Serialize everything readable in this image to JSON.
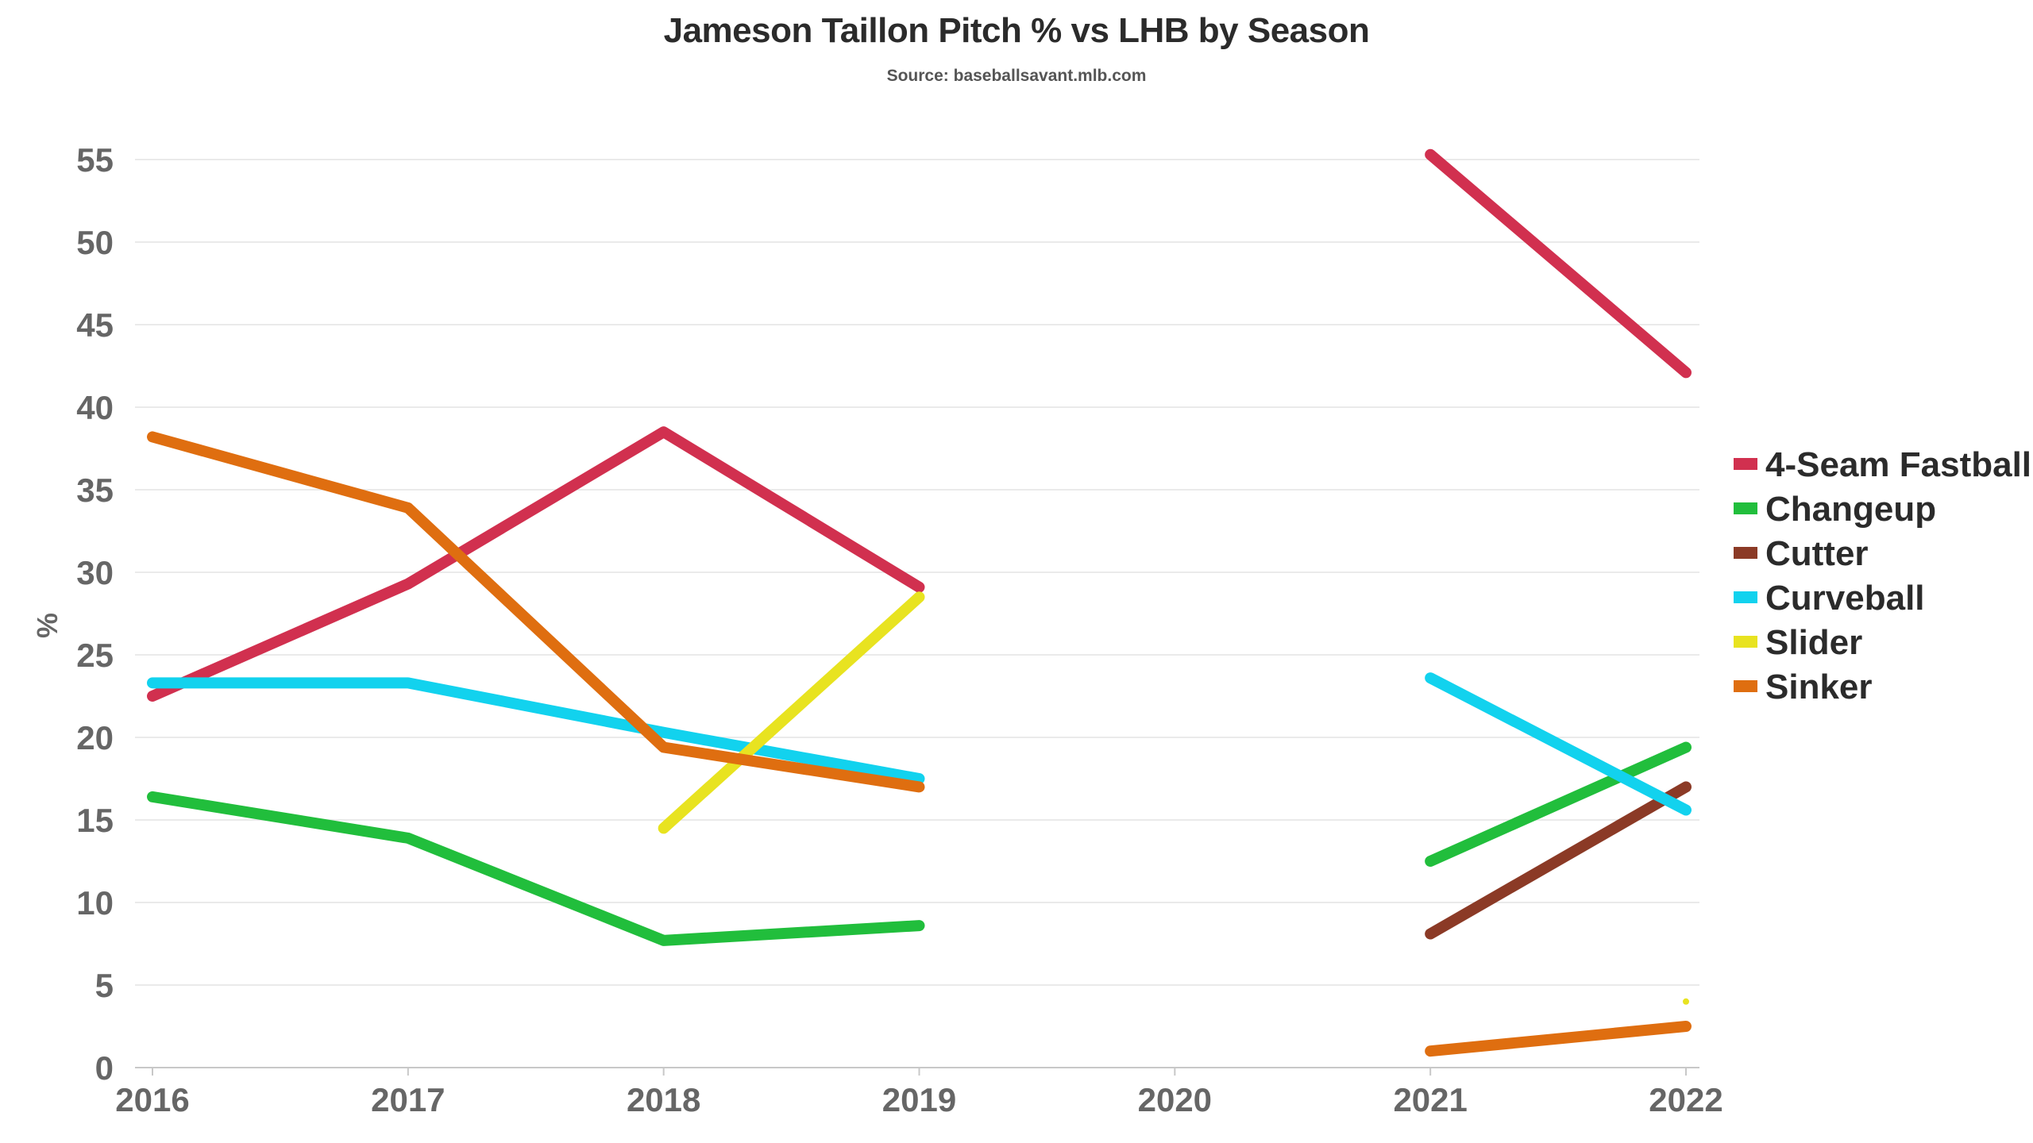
{
  "chart_data": {
    "type": "line",
    "title": "Jameson Taillon Pitch % vs LHB by Season",
    "subtitle": "Source: baseballsavant.mlb.com",
    "xlabel": "",
    "ylabel": "%",
    "x": [
      "2016",
      "2017",
      "2018",
      "2019",
      "2020",
      "2021",
      "2022"
    ],
    "ylim": [
      0,
      55
    ],
    "yticks": [
      0,
      5,
      10,
      15,
      20,
      25,
      30,
      35,
      40,
      45,
      50,
      55
    ],
    "grid": true,
    "legend_position": "right",
    "series": [
      {
        "name": "4-Seam Fastball",
        "color": "#d1304f",
        "values": [
          22.5,
          29.3,
          38.5,
          29.1,
          null,
          55.3,
          42.1
        ]
      },
      {
        "name": "Changeup",
        "color": "#21be3c",
        "values": [
          16.4,
          13.9,
          7.7,
          8.6,
          null,
          12.5,
          19.4
        ]
      },
      {
        "name": "Cutter",
        "color": "#8b3a26",
        "values": [
          null,
          null,
          null,
          null,
          null,
          8.1,
          17.0
        ]
      },
      {
        "name": "Curveball",
        "color": "#12d2ee",
        "values": [
          23.3,
          23.3,
          20.3,
          17.5,
          null,
          23.6,
          15.6
        ]
      },
      {
        "name": "Slider",
        "color": "#e8e320",
        "values": [
          null,
          null,
          14.5,
          28.5,
          null,
          null,
          4.0
        ]
      },
      {
        "name": "Sinker",
        "color": "#df6e10",
        "values": [
          38.2,
          33.9,
          19.4,
          17.0,
          null,
          1.0,
          2.5
        ]
      }
    ]
  }
}
